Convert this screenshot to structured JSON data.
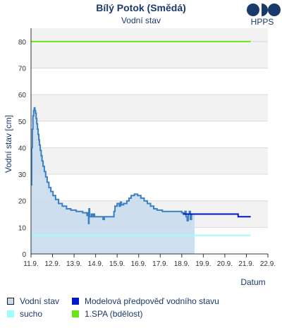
{
  "header": {
    "title": "Bílý Potok (Smědá)",
    "subtitle": "Vodní stav",
    "logo_text": "HPPS"
  },
  "colors": {
    "title": "#1a3a6b",
    "logo": "#1a3a6b",
    "band": "#f2f2f2",
    "grid": "#d9d9d9",
    "axis": "#333333",
    "measured_line": "#3a7fc1",
    "measured_fill": "#c9dcee",
    "forecast_line": "#0018c8",
    "sucho": "#9ffcfc",
    "spa1": "#66e61a"
  },
  "chart_data": {
    "type": "line",
    "xlabel": "Datum",
    "ylabel": "Vodní stav [cm]",
    "ylim": [
      0,
      85
    ],
    "xlim": [
      0,
      11
    ],
    "y_ticks": [
      0,
      10,
      20,
      30,
      40,
      50,
      60,
      70,
      80
    ],
    "x_ticks": [
      {
        "x": 0,
        "label": "11.9."
      },
      {
        "x": 1,
        "label": "12.9."
      },
      {
        "x": 2,
        "label": "13.9."
      },
      {
        "x": 3,
        "label": "14.9."
      },
      {
        "x": 4,
        "label": "15.9."
      },
      {
        "x": 5,
        "label": "16.9."
      },
      {
        "x": 6,
        "label": "17.9."
      },
      {
        "x": 7,
        "label": "18.9."
      },
      {
        "x": 8,
        "label": "19.9."
      },
      {
        "x": 9,
        "label": "20.9."
      },
      {
        "x": 10,
        "label": "21.9."
      },
      {
        "x": 11,
        "label": "22.9."
      }
    ],
    "grid": true,
    "series": [
      {
        "name": "Vodní stav",
        "style": "step-filled",
        "points": [
          [
            0.0,
            26
          ],
          [
            0.03,
            40
          ],
          [
            0.06,
            47
          ],
          [
            0.09,
            52
          ],
          [
            0.12,
            54
          ],
          [
            0.15,
            55
          ],
          [
            0.18,
            54
          ],
          [
            0.21,
            53
          ],
          [
            0.24,
            51
          ],
          [
            0.27,
            49
          ],
          [
            0.3,
            47
          ],
          [
            0.33,
            45
          ],
          [
            0.36,
            43
          ],
          [
            0.39,
            41
          ],
          [
            0.43,
            39
          ],
          [
            0.47,
            37
          ],
          [
            0.51,
            35
          ],
          [
            0.56,
            33
          ],
          [
            0.62,
            31
          ],
          [
            0.68,
            29
          ],
          [
            0.75,
            27
          ],
          [
            0.83,
            25
          ],
          [
            0.92,
            23.5
          ],
          [
            1.02,
            22
          ],
          [
            1.14,
            20.5
          ],
          [
            1.28,
            19
          ],
          [
            1.45,
            18
          ],
          [
            1.65,
            17
          ],
          [
            1.85,
            16.5
          ],
          [
            2.1,
            16
          ],
          [
            2.4,
            15.5
          ],
          [
            2.6,
            14.5
          ],
          [
            2.65,
            15.5
          ],
          [
            2.67,
            11.5
          ],
          [
            2.69,
            17
          ],
          [
            2.72,
            14
          ],
          [
            2.8,
            15
          ],
          [
            2.85,
            14
          ],
          [
            2.9,
            15
          ],
          [
            2.95,
            14
          ],
          [
            3.3,
            14
          ],
          [
            3.35,
            13
          ],
          [
            3.4,
            14
          ],
          [
            3.8,
            14
          ],
          [
            3.85,
            16
          ],
          [
            3.9,
            18
          ],
          [
            4.0,
            19
          ],
          [
            4.1,
            18
          ],
          [
            4.15,
            19.5
          ],
          [
            4.2,
            18.5
          ],
          [
            4.3,
            19
          ],
          [
            4.45,
            20
          ],
          [
            4.55,
            21
          ],
          [
            4.65,
            22
          ],
          [
            4.8,
            22.5
          ],
          [
            4.95,
            22
          ],
          [
            5.1,
            21
          ],
          [
            5.25,
            20
          ],
          [
            5.4,
            19
          ],
          [
            5.55,
            18
          ],
          [
            5.7,
            17
          ],
          [
            5.85,
            16.5
          ],
          [
            6.1,
            16
          ],
          [
            6.5,
            16
          ],
          [
            7.0,
            15.5
          ],
          [
            7.1,
            15
          ],
          [
            7.15,
            16
          ],
          [
            7.2,
            14
          ],
          [
            7.25,
            12.5
          ],
          [
            7.3,
            15
          ],
          [
            7.35,
            16
          ],
          [
            7.4,
            13
          ],
          [
            7.45,
            15
          ],
          [
            7.55,
            15
          ]
        ]
      },
      {
        "name": "Modelová předpověď vodního stavu",
        "style": "step",
        "points": [
          [
            7.05,
            15
          ],
          [
            7.3,
            15
          ],
          [
            7.6,
            15
          ],
          [
            8.0,
            15
          ],
          [
            8.5,
            15
          ],
          [
            9.0,
            15
          ],
          [
            9.6,
            15
          ],
          [
            9.62,
            14
          ],
          [
            10.2,
            14
          ]
        ]
      },
      {
        "name": "sucho",
        "style": "hline",
        "y": 7,
        "x_range": [
          0,
          10.2
        ]
      },
      {
        "name": "1.SPA (bdělost)",
        "style": "hline",
        "y": 80,
        "x_range": [
          0,
          10.2
        ]
      }
    ],
    "legend_position": "bottom"
  },
  "legend": {
    "items": [
      {
        "label": "Vodní stav"
      },
      {
        "label": "Modelová předpověď vodního stavu"
      },
      {
        "label": "sucho"
      },
      {
        "label": "1.SPA (bdělost)"
      }
    ]
  }
}
